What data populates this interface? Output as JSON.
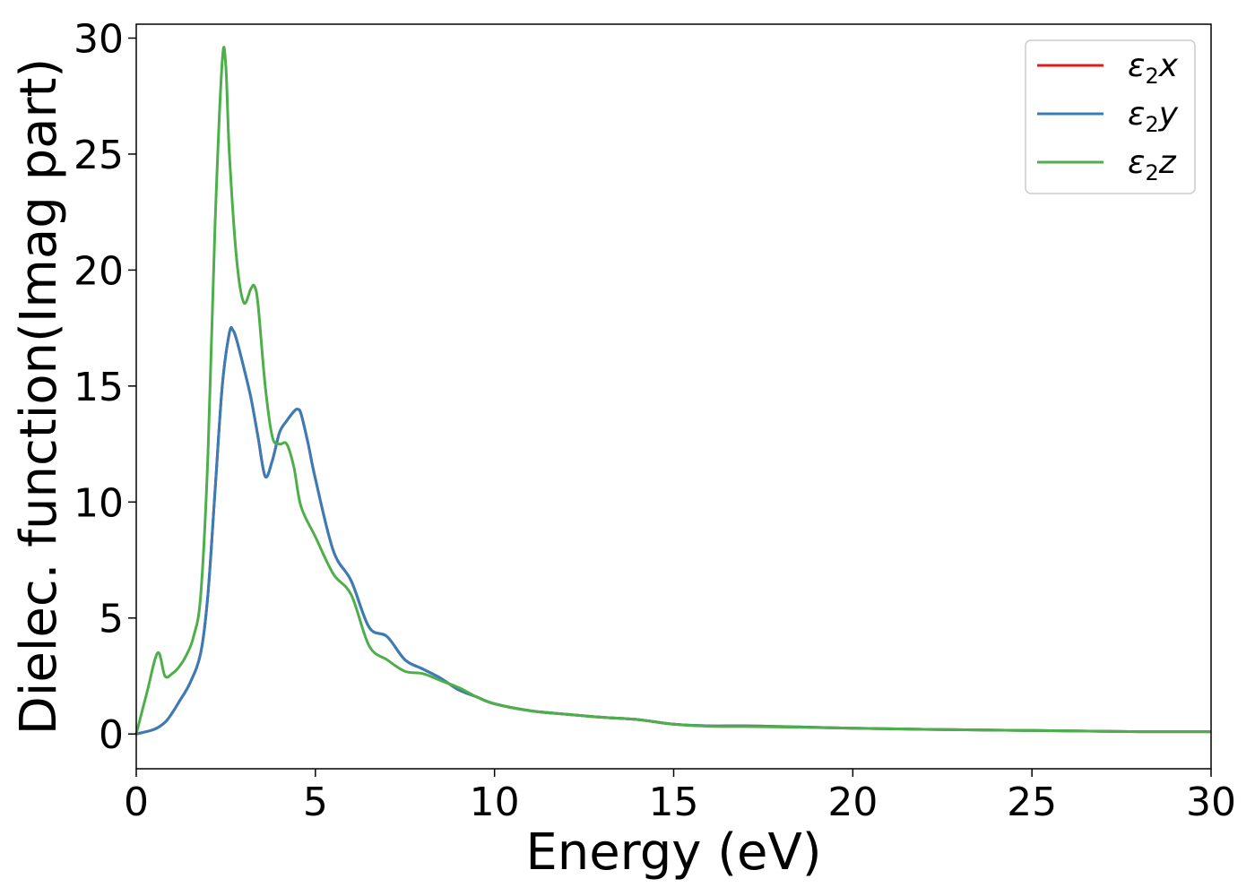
{
  "chart_data": {
    "type": "line",
    "title": "",
    "xlabel": "Energy (eV)",
    "ylabel": "Dielec. function(Imag part)",
    "xlim": [
      0,
      30
    ],
    "ylim": [
      -1.5,
      30.6
    ],
    "xticks": [
      0,
      5,
      10,
      15,
      20,
      25,
      30
    ],
    "yticks": [
      0,
      5,
      10,
      15,
      20,
      25,
      30
    ],
    "grid": false,
    "legend_position": "top-right",
    "series": [
      {
        "name": "x",
        "color": "#e41a1c",
        "x": [
          0,
          0.5,
          0.8,
          1.0,
          1.2,
          1.5,
          1.8,
          2.0,
          2.2,
          2.4,
          2.6,
          2.7,
          2.8,
          3.0,
          3.2,
          3.4,
          3.6,
          3.8,
          4.0,
          4.2,
          4.4,
          4.5,
          4.6,
          4.8,
          5.0,
          5.5,
          6.0,
          6.5,
          7.0,
          7.5,
          8.0,
          8.5,
          9.0,
          9.5,
          10,
          11,
          12,
          13,
          14,
          15,
          16,
          17,
          18,
          20,
          22,
          25,
          28,
          30
        ],
        "values": [
          0,
          0.2,
          0.5,
          0.9,
          1.4,
          2.2,
          3.5,
          6.0,
          10.5,
          15.0,
          17.3,
          17.4,
          17.0,
          15.8,
          14.5,
          12.8,
          11.1,
          11.8,
          13.0,
          13.5,
          13.9,
          14.0,
          13.8,
          12.5,
          11.0,
          7.9,
          6.6,
          4.6,
          4.2,
          3.2,
          2.8,
          2.4,
          1.9,
          1.6,
          1.3,
          1.0,
          0.85,
          0.72,
          0.62,
          0.42,
          0.35,
          0.35,
          0.32,
          0.25,
          0.2,
          0.15,
          0.1,
          0.1
        ]
      },
      {
        "name": "y",
        "color": "#377eb8",
        "x": [
          0,
          0.5,
          0.8,
          1.0,
          1.2,
          1.5,
          1.8,
          2.0,
          2.2,
          2.4,
          2.6,
          2.7,
          2.8,
          3.0,
          3.2,
          3.4,
          3.6,
          3.8,
          4.0,
          4.2,
          4.4,
          4.5,
          4.6,
          4.8,
          5.0,
          5.5,
          6.0,
          6.5,
          7.0,
          7.5,
          8.0,
          8.5,
          9.0,
          9.5,
          10,
          11,
          12,
          13,
          14,
          15,
          16,
          17,
          18,
          20,
          22,
          25,
          28,
          30
        ],
        "values": [
          0,
          0.2,
          0.5,
          0.9,
          1.4,
          2.2,
          3.5,
          6.0,
          10.5,
          15.0,
          17.3,
          17.4,
          17.0,
          15.8,
          14.5,
          12.8,
          11.1,
          11.8,
          13.0,
          13.5,
          13.9,
          14.0,
          13.8,
          12.5,
          11.0,
          7.9,
          6.6,
          4.6,
          4.2,
          3.2,
          2.8,
          2.4,
          1.9,
          1.6,
          1.3,
          1.0,
          0.85,
          0.72,
          0.62,
          0.42,
          0.35,
          0.35,
          0.32,
          0.25,
          0.2,
          0.15,
          0.1,
          0.1
        ]
      },
      {
        "name": "z",
        "color": "#4daf4a",
        "x": [
          0,
          0.3,
          0.6,
          0.8,
          1.0,
          1.2,
          1.4,
          1.6,
          1.8,
          2.0,
          2.2,
          2.4,
          2.5,
          2.6,
          2.8,
          3.0,
          3.2,
          3.3,
          3.4,
          3.6,
          3.8,
          4.0,
          4.2,
          4.4,
          4.6,
          5.0,
          5.5,
          6.0,
          6.5,
          7.0,
          7.5,
          8.0,
          8.5,
          9.0,
          9.5,
          10,
          11,
          12,
          13,
          14,
          15,
          16,
          17,
          18,
          20,
          22,
          25,
          28,
          30
        ],
        "values": [
          0,
          1.8,
          3.5,
          2.5,
          2.6,
          2.9,
          3.4,
          4.2,
          6.0,
          12.0,
          22.0,
          29.0,
          28.8,
          25.0,
          20.5,
          18.6,
          19.2,
          19.3,
          18.5,
          15.0,
          12.8,
          12.5,
          12.5,
          11.5,
          9.8,
          8.5,
          6.9,
          6.0,
          3.8,
          3.2,
          2.7,
          2.6,
          2.3,
          2.0,
          1.6,
          1.3,
          1.0,
          0.85,
          0.72,
          0.62,
          0.42,
          0.33,
          0.32,
          0.3,
          0.25,
          0.2,
          0.15,
          0.1,
          0.1
        ]
      }
    ]
  }
}
